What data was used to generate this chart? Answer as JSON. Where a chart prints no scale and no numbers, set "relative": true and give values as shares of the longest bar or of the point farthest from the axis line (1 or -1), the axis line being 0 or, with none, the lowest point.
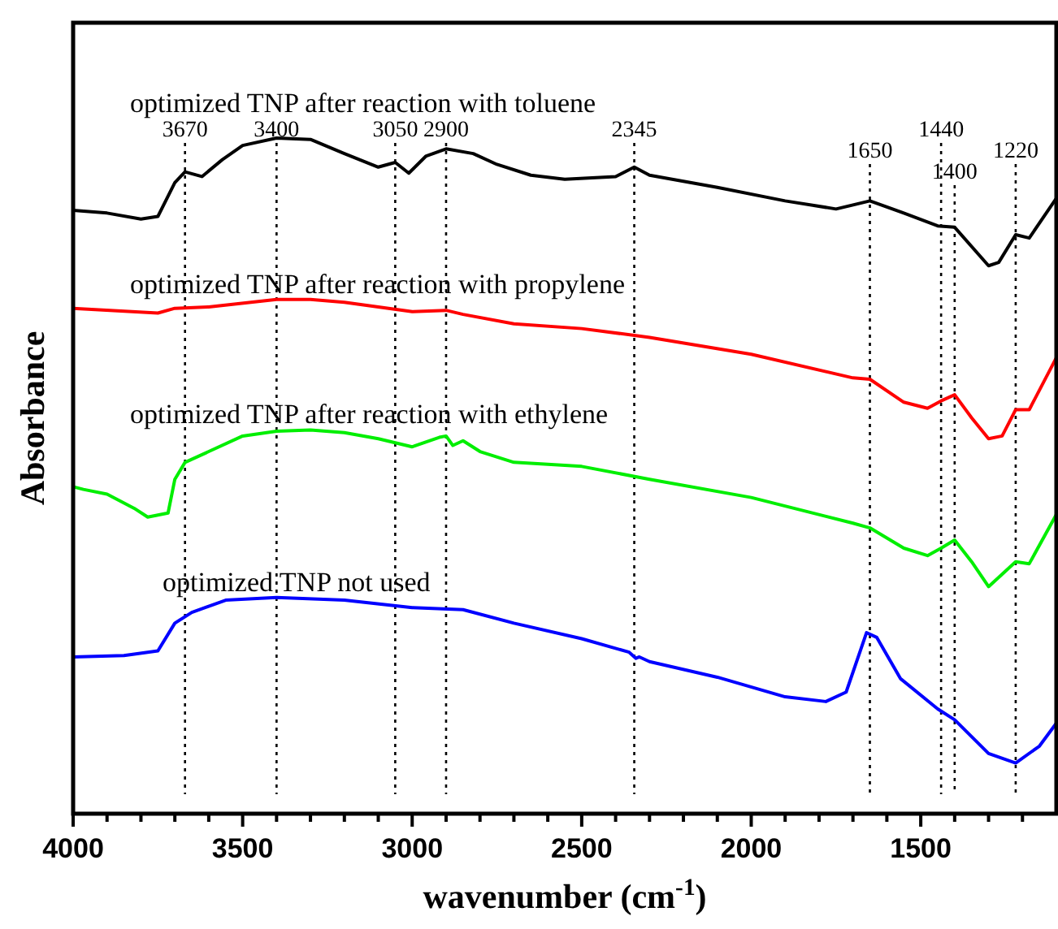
{
  "chart_data": {
    "type": "line",
    "relative": true,
    "xlabel": "wavenumber (cm$^{-1}$)",
    "ylabel": "Absorbance",
    "xlim": [
      4000,
      1100
    ],
    "xticks": [
      4000,
      {
        "value": 3900,
        "label": null
      },
      {
        "value": 3800,
        "label": null
      },
      {
        "value": 3700,
        "label": null
      },
      {
        "value": 3600,
        "label": null
      },
      3500,
      {
        "value": 3400,
        "label": null
      },
      {
        "value": 3300,
        "label": null
      },
      {
        "value": 3200,
        "label": null
      },
      {
        "value": 3100,
        "label": null
      },
      3000,
      {
        "value": 2900,
        "label": null
      },
      {
        "value": 2800,
        "label": null
      },
      {
        "value": 2700,
        "label": null
      },
      {
        "value": 2600,
        "label": null
      },
      2500,
      {
        "value": 2400,
        "label": null
      },
      {
        "value": 2300,
        "label": null
      },
      {
        "value": 2200,
        "label": null
      },
      {
        "value": 2100,
        "label": null
      },
      2000,
      {
        "value": 1900,
        "label": null
      },
      {
        "value": 1800,
        "label": null
      },
      {
        "value": 1700,
        "label": null
      },
      {
        "value": 1600,
        "label": null
      },
      1500,
      {
        "value": 1400,
        "label": null
      },
      {
        "value": 1300,
        "label": null
      },
      {
        "value": 1200,
        "label": null
      }
    ],
    "grid": false,
    "legend": false,
    "marker": "none",
    "line_style": "solid",
    "series": [
      {
        "name": "optimized TNP after reaction with toluene",
        "color": "#000000",
        "x": [
          4000,
          3900,
          3800,
          3750,
          3700,
          3670,
          3620,
          3560,
          3500,
          3400,
          3300,
          3200,
          3100,
          3050,
          3010,
          2960,
          2900,
          2820,
          2750,
          2650,
          2550,
          2400,
          2345,
          2300,
          2100,
          1900,
          1750,
          1650,
          1550,
          1450,
          1400,
          1300,
          1270,
          1220,
          1180,
          1100
        ],
        "values": [
          0.893,
          0.889,
          0.88,
          0.884,
          0.934,
          0.95,
          0.943,
          0.968,
          0.989,
          1.0,
          0.998,
          0.977,
          0.957,
          0.964,
          0.948,
          0.973,
          0.984,
          0.977,
          0.961,
          0.945,
          0.939,
          0.943,
          0.957,
          0.945,
          0.927,
          0.907,
          0.895,
          0.907,
          0.889,
          0.87,
          0.868,
          0.811,
          0.816,
          0.857,
          0.852,
          0.911
        ]
      },
      {
        "name": "optimized TNP after reaction with propylene",
        "color": "#ff0000",
        "x": [
          4000,
          3750,
          3700,
          3600,
          3400,
          3300,
          3200,
          3100,
          3000,
          2900,
          2850,
          2700,
          2500,
          2300,
          2000,
          1700,
          1650,
          1550,
          1480,
          1440,
          1400,
          1350,
          1300,
          1260,
          1220,
          1180,
          1100
        ],
        "values": [
          0.748,
          0.741,
          0.748,
          0.75,
          0.761,
          0.761,
          0.757,
          0.75,
          0.743,
          0.745,
          0.739,
          0.725,
          0.718,
          0.705,
          0.68,
          0.645,
          0.643,
          0.609,
          0.6,
          0.611,
          0.62,
          0.586,
          0.555,
          0.559,
          0.598,
          0.598,
          0.675
        ]
      },
      {
        "name": "optimized TNP after reaction with ethylene",
        "color": "#00ee00",
        "x": [
          4000,
          3970,
          3900,
          3820,
          3780,
          3720,
          3700,
          3670,
          3600,
          3500,
          3400,
          3300,
          3200,
          3100,
          3000,
          2920,
          2900,
          2880,
          2850,
          2800,
          2700,
          2500,
          2300,
          2000,
          1700,
          1650,
          1550,
          1480,
          1440,
          1400,
          1350,
          1300,
          1220,
          1180,
          1100
        ],
        "values": [
          0.484,
          0.48,
          0.473,
          0.452,
          0.439,
          0.445,
          0.495,
          0.52,
          0.536,
          0.559,
          0.566,
          0.568,
          0.564,
          0.555,
          0.543,
          0.557,
          0.559,
          0.545,
          0.552,
          0.536,
          0.52,
          0.514,
          0.495,
          0.468,
          0.43,
          0.423,
          0.393,
          0.382,
          0.393,
          0.405,
          0.373,
          0.336,
          0.373,
          0.37,
          0.443
        ]
      },
      {
        "name": "optimized TNP not used",
        "color": "#0000ff",
        "x": [
          4000,
          3850,
          3750,
          3700,
          3650,
          3550,
          3400,
          3200,
          3000,
          2850,
          2700,
          2500,
          2360,
          2340,
          2330,
          2300,
          2100,
          1900,
          1780,
          1720,
          1660,
          1630,
          1560,
          1450,
          1400,
          1300,
          1220,
          1150,
          1100
        ],
        "values": [
          0.232,
          0.234,
          0.241,
          0.282,
          0.298,
          0.316,
          0.32,
          0.316,
          0.305,
          0.302,
          0.282,
          0.259,
          0.239,
          0.23,
          0.232,
          0.225,
          0.202,
          0.173,
          0.166,
          0.18,
          0.268,
          0.261,
          0.2,
          0.155,
          0.139,
          0.089,
          0.075,
          0.1,
          0.134
        ]
      }
    ],
    "ref_lines": [
      {
        "axis": "x",
        "value": 3670,
        "label": "3670",
        "line_style": "dotted"
      },
      {
        "axis": "x",
        "value": 3400,
        "label": "3400",
        "line_style": "dotted"
      },
      {
        "axis": "x",
        "value": 3050,
        "label": "3050",
        "line_style": "dotted"
      },
      {
        "axis": "x",
        "value": 2900,
        "label": "2900",
        "line_style": "dotted"
      },
      {
        "axis": "x",
        "value": 2345,
        "label": "2345",
        "line_style": "dotted"
      },
      {
        "axis": "x",
        "value": 1650,
        "label": "1650",
        "line_style": "dotted"
      },
      {
        "axis": "x",
        "value": 1440,
        "label": "1440",
        "line_style": "dotted"
      },
      {
        "axis": "x",
        "value": 1400,
        "label": "1400",
        "line_style": "dotted"
      },
      {
        "axis": "x",
        "value": 1220,
        "label": "1220",
        "line_style": "dotted"
      }
    ]
  }
}
